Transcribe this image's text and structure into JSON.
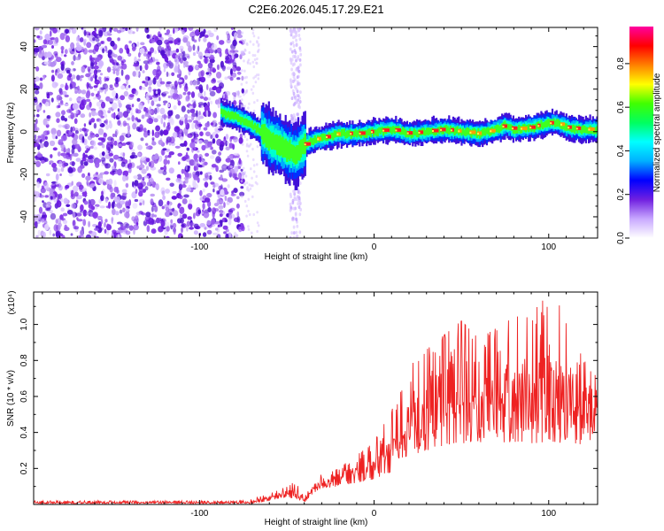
{
  "title": "C2E6.2026.045.17.29.E21",
  "chart_data": [
    {
      "type": "heatmap",
      "name": "spectrogram",
      "xlabel": "Height of straight line (km)",
      "ylabel": "Frequency (Hz)",
      "xlim": [
        -195,
        128
      ],
      "ylim": [
        -50,
        49
      ],
      "xticks": [
        -100,
        0,
        100
      ],
      "yticks": [
        -40,
        -20,
        0,
        20,
        40
      ],
      "colorbar": {
        "label": "Normalized spectral amplitude",
        "range": [
          0.0,
          0.97
        ],
        "ticks": [
          0.0,
          0.2,
          0.4,
          0.6,
          0.8
        ],
        "tick_labels": [
          "0.0",
          "0.2",
          "0.4",
          "0.6",
          "0.8"
        ],
        "colors": [
          "#ffffff",
          "#c8a8ff",
          "#7020e0",
          "#0000ff",
          "#00b0ff",
          "#00ffff",
          "#00ff60",
          "#40ff00",
          "#ffff00",
          "#ff8000",
          "#ff0000",
          "#ff00a0"
        ]
      },
      "noise_region_x": [
        -195,
        -75
      ],
      "noise_stripe_x": [
        -48,
        -42
      ],
      "ridge": {
        "x": [
          -88,
          -80,
          -72,
          -65,
          -60,
          -55,
          -50,
          -45,
          -40,
          -35,
          -30,
          -20,
          -10,
          0,
          10,
          20,
          30,
          40,
          50,
          60,
          70,
          75,
          80,
          90,
          100,
          105,
          110,
          120,
          128
        ],
        "y": [
          9,
          7,
          4,
          0,
          -4,
          -6,
          -9,
          -11,
          -6,
          -4,
          -3,
          -1,
          -1,
          0,
          1,
          -1,
          0,
          1,
          0,
          -1,
          1,
          3,
          1,
          2,
          4,
          4,
          2,
          1,
          1
        ]
      }
    },
    {
      "type": "line",
      "name": "snr",
      "xlabel": "Height of straight line (km)",
      "ylabel": "SNR (10 * v/v)",
      "multiplier": "(x10⁴)",
      "xlim": [
        -195,
        128
      ],
      "ylim": [
        0,
        1.18
      ],
      "xticks": [
        -100,
        0,
        100
      ],
      "yticks": [
        0.2,
        0.4,
        0.6,
        0.8,
        1.0
      ],
      "ytick_labels": [
        "0.2",
        "0.4",
        "0.6",
        "0.8",
        "1.0"
      ],
      "color": "#ee2222",
      "envelope": {
        "x": [
          -195,
          -80,
          -70,
          -60,
          -50,
          -45,
          -40,
          -35,
          -30,
          -20,
          -10,
          0,
          10,
          20,
          30,
          40,
          50,
          60,
          70,
          80,
          90,
          100,
          110,
          120,
          128
        ],
        "lo": [
          0.005,
          0.005,
          0.005,
          0.02,
          0.04,
          0.03,
          0.01,
          0.06,
          0.09,
          0.1,
          0.12,
          0.14,
          0.18,
          0.26,
          0.3,
          0.32,
          0.34,
          0.34,
          0.35,
          0.34,
          0.34,
          0.34,
          0.34,
          0.32,
          0.4
        ],
        "hi": [
          0.02,
          0.02,
          0.03,
          0.06,
          0.1,
          0.14,
          0.04,
          0.12,
          0.17,
          0.2,
          0.28,
          0.35,
          0.52,
          0.78,
          0.86,
          0.94,
          1.02,
          0.92,
          0.98,
          1.04,
          1.06,
          1.17,
          1.1,
          0.8,
          0.74
        ]
      }
    }
  ]
}
